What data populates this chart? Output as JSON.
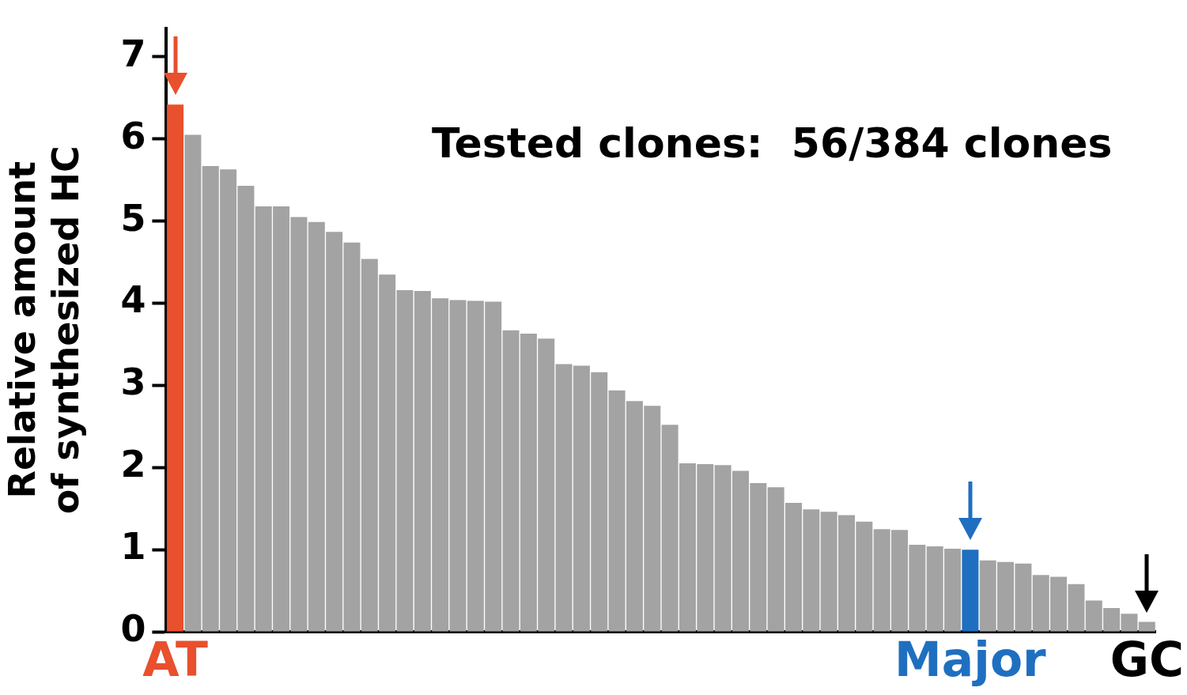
{
  "chart_data": {
    "type": "bar",
    "ylabel": "Relative amount\nof synthesized HC",
    "categories": [
      "AT",
      null,
      null,
      null,
      null,
      null,
      null,
      null,
      null,
      null,
      null,
      null,
      null,
      null,
      null,
      null,
      null,
      null,
      null,
      null,
      null,
      null,
      null,
      null,
      null,
      null,
      null,
      null,
      null,
      null,
      null,
      null,
      null,
      null,
      null,
      null,
      null,
      null,
      null,
      null,
      null,
      null,
      null,
      null,
      null,
      "Major",
      null,
      null,
      null,
      null,
      null,
      null,
      null,
      null,
      null,
      "GC"
    ],
    "values": [
      6.42,
      6.05,
      5.67,
      5.63,
      5.43,
      5.18,
      5.18,
      5.05,
      4.99,
      4.87,
      4.74,
      4.54,
      4.35,
      4.16,
      4.15,
      4.06,
      4.04,
      4.03,
      4.02,
      3.67,
      3.63,
      3.57,
      3.26,
      3.24,
      3.16,
      2.94,
      2.81,
      2.75,
      2.52,
      2.05,
      2.04,
      2.03,
      1.96,
      1.81,
      1.76,
      1.57,
      1.49,
      1.46,
      1.42,
      1.34,
      1.25,
      1.24,
      1.06,
      1.04,
      1.01,
      1.0,
      0.87,
      0.85,
      0.83,
      0.69,
      0.67,
      0.58,
      0.38,
      0.29,
      0.22,
      0.12
    ],
    "colors": [
      "#e8502e",
      "#a3a3a3",
      "#a3a3a3",
      "#a3a3a3",
      "#a3a3a3",
      "#a3a3a3",
      "#a3a3a3",
      "#a3a3a3",
      "#a3a3a3",
      "#a3a3a3",
      "#a3a3a3",
      "#a3a3a3",
      "#a3a3a3",
      "#a3a3a3",
      "#a3a3a3",
      "#a3a3a3",
      "#a3a3a3",
      "#a3a3a3",
      "#a3a3a3",
      "#a3a3a3",
      "#a3a3a3",
      "#a3a3a3",
      "#a3a3a3",
      "#a3a3a3",
      "#a3a3a3",
      "#a3a3a3",
      "#a3a3a3",
      "#a3a3a3",
      "#a3a3a3",
      "#a3a3a3",
      "#a3a3a3",
      "#a3a3a3",
      "#a3a3a3",
      "#a3a3a3",
      "#a3a3a3",
      "#a3a3a3",
      "#a3a3a3",
      "#a3a3a3",
      "#a3a3a3",
      "#a3a3a3",
      "#a3a3a3",
      "#a3a3a3",
      "#a3a3a3",
      "#a3a3a3",
      "#a3a3a3",
      "#1f6fc0",
      "#a3a3a3",
      "#a3a3a3",
      "#a3a3a3",
      "#a3a3a3",
      "#a3a3a3",
      "#a3a3a3",
      "#a3a3a3",
      "#a3a3a3",
      "#a3a3a3",
      "#a3a3a3"
    ],
    "ylim": [
      0,
      7.35
    ],
    "yticks": [
      0,
      1,
      2,
      3,
      4,
      5,
      6,
      7
    ],
    "annotations": [
      "Tested clones:  56/384 clones"
    ]
  }
}
